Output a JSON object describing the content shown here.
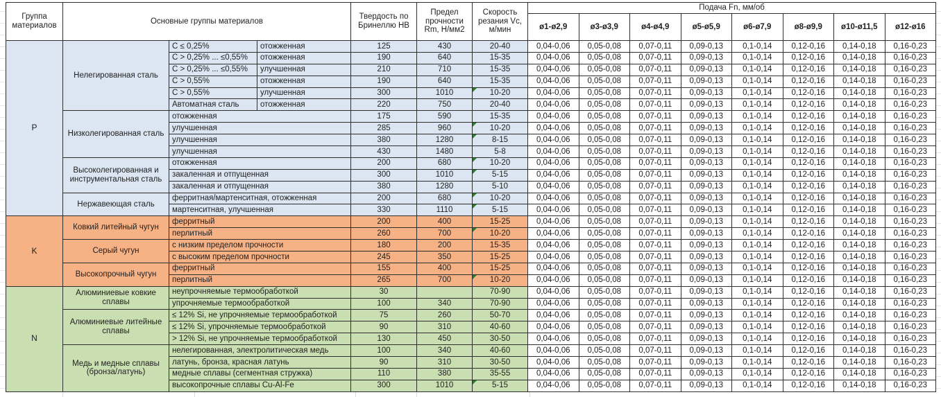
{
  "header": {
    "col_group": "Группа материалов",
    "col_main_groups": "Основные группы материалов",
    "col_hardness": "Твердость по Бринеллю HB",
    "col_strength": "Предел прочности Rm, Н/мм2",
    "col_speed": "Скорость резания Vc, м/мин",
    "feed_title": "Подача Fn, мм/об",
    "feed_cols": [
      "ø1-ø2,9",
      "ø3-ø3,9",
      "ø4-ø4,9",
      "ø5-ø5,9",
      "ø6-ø7,9",
      "ø8-ø9,9",
      "ø10-ø11,5",
      "ø12-ø16"
    ]
  },
  "feed_values": [
    "0,04-0,06",
    "0,05-0,08",
    "0,07-0,11",
    "0,09-0,13",
    "0,1-0,14",
    "0,12-0,16",
    "0,14-0,18",
    "0,16-0,23"
  ],
  "marker_color": "#268026",
  "groups": [
    {
      "code": "P",
      "color": "#dbe6f2",
      "subgroups": [
        {
          "name": "Нелегированная сталь",
          "rows": [
            {
              "sub1": "C ≤ 0,25%",
              "sub2": "отожженная",
              "hb": "125",
              "rm": "430",
              "vc": "20-40",
              "marker": false
            },
            {
              "sub1": "C > 0,25% ... ≤0,55%",
              "sub2": "отожженная",
              "hb": "190",
              "rm": "640",
              "vc": "15-35",
              "marker": false
            },
            {
              "sub1": "C > 0,25% ... ≤0,55%",
              "sub2": "улучшенная",
              "hb": "210",
              "rm": "710",
              "vc": "15-35",
              "marker": false
            },
            {
              "sub1": "C > 0,55%",
              "sub2": "отожженная",
              "hb": "190",
              "rm": "640",
              "vc": "15-35",
              "marker": false
            },
            {
              "sub1": "C > 0,55%",
              "sub2": "улучшенная",
              "hb": "300",
              "rm": "1010",
              "vc": "10-20",
              "marker": true
            },
            {
              "sub1": "Автоматная сталь",
              "sub2": "отожженная",
              "hb": "220",
              "rm": "750",
              "vc": "20-40",
              "marker": false
            }
          ]
        },
        {
          "name": "Низколегированная сталь",
          "rows": [
            {
              "sub1": "отожженная",
              "sub2": null,
              "hb": "175",
              "rm": "590",
              "vc": "15-35",
              "marker": false
            },
            {
              "sub1": "улучшенная",
              "sub2": null,
              "hb": "285",
              "rm": "960",
              "vc": "10-20",
              "marker": true
            },
            {
              "sub1": "улучшенная",
              "sub2": null,
              "hb": "380",
              "rm": "1280",
              "vc": "8-15",
              "marker": true
            },
            {
              "sub1": "улучшенная",
              "sub2": null,
              "hb": "430",
              "rm": "1480",
              "vc": "5-8",
              "marker": false
            }
          ]
        },
        {
          "name": "Высоколегированная и инструментальная сталь",
          "rows": [
            {
              "sub1": "отожженная",
              "sub2": null,
              "hb": "200",
              "rm": "680",
              "vc": "10-20",
              "marker": true
            },
            {
              "sub1": "закаленная и отпущенная",
              "sub2": null,
              "hb": "300",
              "rm": "1010",
              "vc": "5-15",
              "marker": true
            },
            {
              "sub1": "закаленная и отпущенная",
              "sub2": null,
              "hb": "380",
              "rm": "1280",
              "vc": "5-10",
              "marker": false
            }
          ]
        },
        {
          "name": "Нержавеющая сталь",
          "rows": [
            {
              "sub1": "ферритная/мартенситная, отожженная",
              "sub2": null,
              "hb": "200",
              "rm": "680",
              "vc": "10-20",
              "marker": true
            },
            {
              "sub1": "мартенситная, улучшенная",
              "sub2": null,
              "hb": "330",
              "rm": "1110",
              "vc": "5-15",
              "marker": true
            }
          ]
        }
      ]
    },
    {
      "code": "K",
      "color": "#f6b185",
      "subgroups": [
        {
          "name": "Ковкий литейный чугун",
          "rows": [
            {
              "sub1": "ферритный",
              "sub2": null,
              "hb": "200",
              "rm": "400",
              "vc": "15-25",
              "marker": false
            },
            {
              "sub1": "перлитный",
              "sub2": null,
              "hb": "260",
              "rm": "700",
              "vc": "10-20",
              "marker": true
            }
          ]
        },
        {
          "name": "Серый чугун",
          "rows": [
            {
              "sub1": "с низким пределом прочности",
              "sub2": null,
              "hb": "180",
              "rm": "200",
              "vc": "15-35",
              "marker": false
            },
            {
              "sub1": "с высоким пределом прочности",
              "sub2": null,
              "hb": "245",
              "rm": "350",
              "vc": "15-25",
              "marker": false
            }
          ]
        },
        {
          "name": "Высокопрочный чугун",
          "rows": [
            {
              "sub1": "ферритный",
              "sub2": null,
              "hb": "155",
              "rm": "400",
              "vc": "15-25",
              "marker": false
            },
            {
              "sub1": "перлитный",
              "sub2": null,
              "hb": "265",
              "rm": "700",
              "vc": "10-20",
              "marker": true
            }
          ]
        }
      ]
    },
    {
      "code": "N",
      "color": "#cadfb1",
      "subgroups": [
        {
          "name": "Алюминиевые ковкие сплавы",
          "rows": [
            {
              "sub1": "неупрочняемые термообработкой",
              "sub2": null,
              "hb": "30",
              "rm": "",
              "vc": "70-90",
              "marker": false
            },
            {
              "sub1": "упрочняемые термообработкой",
              "sub2": null,
              "hb": "100",
              "rm": "340",
              "vc": "70-90",
              "marker": false
            }
          ]
        },
        {
          "name": "Алюминиевые литейные сплавы",
          "rows": [
            {
              "sub1": "≤ 12% Si, не упрочняемые термообработкой",
              "sub2": null,
              "hb": "75",
              "rm": "260",
              "vc": "50-70",
              "marker": false
            },
            {
              "sub1": "≤ 12% Si, упрочняемые термообработкой",
              "sub2": null,
              "hb": "90",
              "rm": "310",
              "vc": "40-60",
              "marker": false
            },
            {
              "sub1": "> 12% Si, не упрочняемые термообработкой",
              "sub2": null,
              "hb": "130",
              "rm": "450",
              "vc": "30-50",
              "marker": false
            }
          ]
        },
        {
          "name": "Медь и медные сплавы (бронза/латунь)",
          "rows": [
            {
              "sub1": "нелегированная, электролитическая медь",
              "sub2": null,
              "hb": "100",
              "rm": "340",
              "vc": "40-60",
              "marker": false
            },
            {
              "sub1": "латунь, бронза, красная латунь",
              "sub2": null,
              "hb": "90",
              "rm": "310",
              "vc": "30-50",
              "marker": false
            },
            {
              "sub1": "медные сплавы (сегментная стружка)",
              "sub2": null,
              "hb": "110",
              "rm": "380",
              "vc": "35-55",
              "marker": false
            },
            {
              "sub1": "высокопрочные сплавы Cu-Al-Fe",
              "sub2": null,
              "hb": "300",
              "rm": "1010",
              "vc": "5-15",
              "marker": true
            }
          ]
        }
      ]
    }
  ]
}
